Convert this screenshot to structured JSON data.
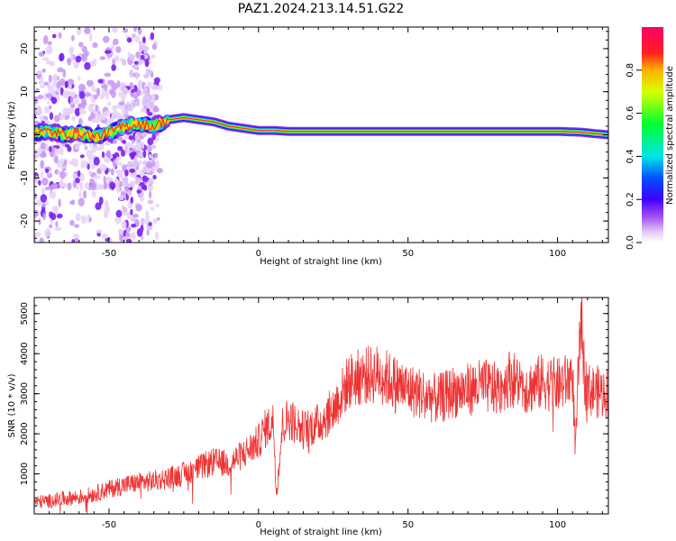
{
  "title": "PAZ1.2024.213.14.51.G22",
  "chart_data": [
    {
      "type": "heatmap",
      "xlabel": "Height of straight line (km)",
      "ylabel": "Frequency (Hz)",
      "xlim": [
        -75,
        117
      ],
      "ylim": [
        -25,
        25
      ],
      "xticks": [
        -50,
        0,
        50,
        100
      ],
      "yticks": [
        -20,
        -10,
        0,
        10,
        20
      ],
      "colorbar": {
        "label": "Normalized spectral amplitude",
        "range": [
          0,
          1
        ],
        "ticks": [
          0.0,
          0.2,
          0.4,
          0.6,
          0.8
        ]
      },
      "ridge": {
        "x": [
          -75,
          -70,
          -65,
          -60,
          -55,
          -50,
          -45,
          -40,
          -35,
          -30,
          -25,
          -20,
          -15,
          -10,
          -5,
          0,
          5,
          10,
          20,
          40,
          60,
          80,
          100,
          108,
          112,
          117
        ],
        "frequency": [
          0.5,
          0.8,
          0.0,
          0.5,
          -0.5,
          0.5,
          2.0,
          2.5,
          2.0,
          3.5,
          4.0,
          3.5,
          3.0,
          2.0,
          1.5,
          1.0,
          1.0,
          0.8,
          0.8,
          0.8,
          0.8,
          0.8,
          0.8,
          0.6,
          0.3,
          0.0
        ]
      }
    },
    {
      "type": "line",
      "xlabel": "Height of straight line (km)",
      "ylabel": "SNR (10 * v/v)",
      "xlim": [
        -75,
        117
      ],
      "ylim": [
        0,
        5400
      ],
      "xticks": [
        -50,
        0,
        50,
        100
      ],
      "yticks": [
        1000,
        2000,
        3000,
        4000,
        5000
      ],
      "color": "#ee3333",
      "series": [
        {
          "x": [
            -75,
            -70,
            -65,
            -60,
            -55,
            -50,
            -45,
            -40,
            -35,
            -30,
            -25,
            -20,
            -15,
            -10,
            -5,
            0,
            2,
            5,
            6,
            8,
            10,
            15,
            20,
            25,
            30,
            35,
            40,
            45,
            50,
            55,
            60,
            65,
            70,
            75,
            80,
            84,
            90,
            95,
            100,
            103,
            105,
            106,
            107,
            108,
            109,
            110,
            113,
            117
          ],
          "y": [
            300,
            320,
            380,
            420,
            500,
            620,
            720,
            780,
            820,
            900,
            1000,
            1150,
            1300,
            1250,
            1500,
            1800,
            2100,
            2300,
            500,
            2200,
            2400,
            2100,
            2250,
            2600,
            3300,
            3450,
            3500,
            3300,
            3100,
            3000,
            2850,
            3050,
            3100,
            3200,
            3100,
            3400,
            3150,
            3300,
            3200,
            3300,
            3500,
            1500,
            3700,
            5000,
            3400,
            3100,
            3050,
            3000
          ]
        }
      ]
    }
  ]
}
